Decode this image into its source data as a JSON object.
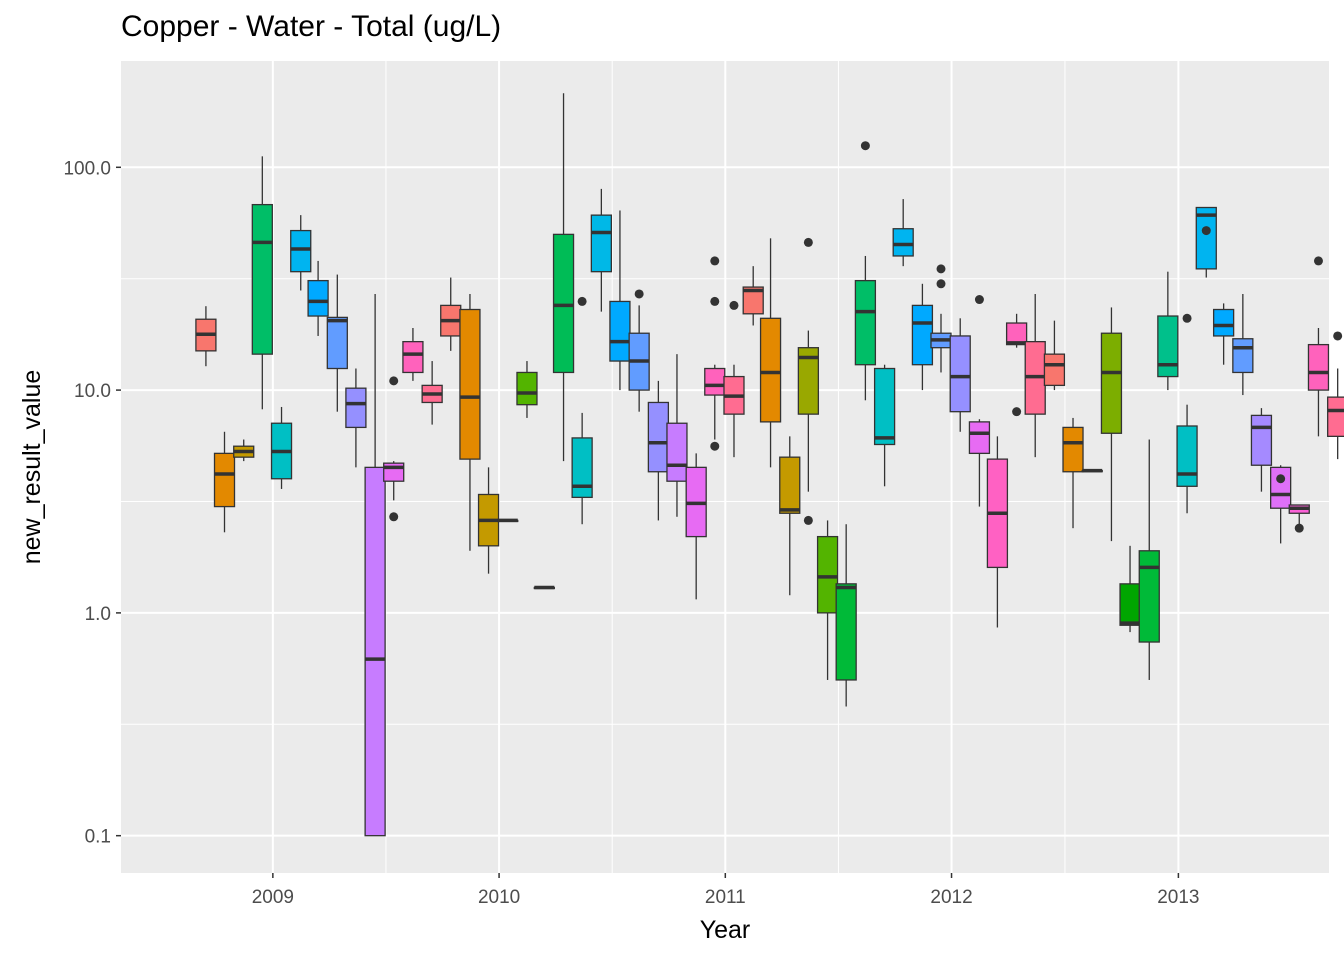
{
  "chart_data": {
    "type": "boxplot",
    "title": "Copper - Water - Total (ug/L)",
    "xlabel": "Year",
    "ylabel": "new_result_value",
    "y_scale": "log10",
    "ylim": [
      0.068,
      300
    ],
    "x_range": [
      "2008-05-01",
      "2013-09-01"
    ],
    "y_ticks": [
      0.1,
      1.0,
      10.0,
      100.0
    ],
    "y_tick_labels": [
      "0.1",
      "1.0",
      "10.0",
      "100.0"
    ],
    "x_ticks": [
      "2009-01-01",
      "2010-01-01",
      "2011-01-01",
      "2012-01-01",
      "2013-01-01"
    ],
    "x_tick_labels": [
      "2009",
      "2010",
      "2011",
      "2012",
      "2013"
    ],
    "grid": true,
    "legend": "none",
    "boxes": [
      {
        "date": "2008-09-15",
        "low": 12.8,
        "q1": 15.0,
        "median": 17.8,
        "q3": 20.8,
        "high": 23.8,
        "outliers": [],
        "color": "#F8766D"
      },
      {
        "date": "2008-10-15",
        "low": 2.3,
        "q1": 3.0,
        "median": 4.2,
        "q3": 5.2,
        "high": 6.5,
        "outliers": [],
        "color": "#E38900"
      },
      {
        "date": "2008-11-15",
        "low": 4.8,
        "q1": 5.0,
        "median": 5.3,
        "q3": 5.6,
        "high": 6.0,
        "outliers": [],
        "color": "#C49A00"
      },
      {
        "date": "2008-12-15",
        "low": 8.2,
        "q1": 14.5,
        "median": 46.0,
        "q3": 68.0,
        "high": 112.0,
        "outliers": [],
        "color": "#00BE67"
      },
      {
        "date": "2009-01-15",
        "low": 3.6,
        "q1": 4.0,
        "median": 5.3,
        "q3": 7.1,
        "high": 8.4,
        "outliers": [],
        "color": "#00BFC4"
      },
      {
        "date": "2009-02-15",
        "low": 28.0,
        "q1": 34.0,
        "median": 43.0,
        "q3": 52.0,
        "high": 61.0,
        "outliers": [],
        "color": "#00B4F0"
      },
      {
        "date": "2009-03-15",
        "low": 17.5,
        "q1": 21.5,
        "median": 25.0,
        "q3": 31.0,
        "high": 38.0,
        "outliers": [],
        "color": "#00A9FF"
      },
      {
        "date": "2009-04-15",
        "low": 8.0,
        "q1": 12.5,
        "median": 20.5,
        "q3": 21.2,
        "high": 33.0,
        "outliers": [],
        "color": "#619CFF"
      },
      {
        "date": "2009-05-15",
        "low": 4.5,
        "q1": 6.8,
        "median": 8.7,
        "q3": 10.2,
        "high": 12.5,
        "outliers": [],
        "color": "#9590FF"
      },
      {
        "date": "2009-06-15",
        "low": 0.1,
        "q1": 0.1,
        "median": 0.62,
        "q3": 4.5,
        "high": 27.0,
        "outliers": [],
        "color": "#C77CFF"
      },
      {
        "date": "2009-07-15",
        "low": 3.2,
        "q1": 3.9,
        "median": 4.5,
        "q3": 4.7,
        "high": 4.8,
        "outliers": [
          11.0,
          2.7
        ],
        "color": "#E76BF3"
      },
      {
        "date": "2009-08-15",
        "low": 11.0,
        "q1": 12.0,
        "median": 14.5,
        "q3": 16.5,
        "high": 19.0,
        "outliers": [],
        "color": "#FF62BC"
      },
      {
        "date": "2009-09-15",
        "low": 7.0,
        "q1": 8.8,
        "median": 9.6,
        "q3": 10.5,
        "high": 13.5,
        "outliers": [],
        "color": "#FF6C91"
      },
      {
        "date": "2009-10-15",
        "low": 15.0,
        "q1": 17.5,
        "median": 20.5,
        "q3": 24.0,
        "high": 32.0,
        "outliers": [],
        "color": "#F8766D"
      },
      {
        "date": "2009-11-15",
        "low": 1.9,
        "q1": 4.9,
        "median": 9.3,
        "q3": 23.0,
        "high": 27.0,
        "outliers": [],
        "color": "#E38900"
      },
      {
        "date": "2009-12-15",
        "low": 1.5,
        "q1": 2.0,
        "median": 2.6,
        "q3": 3.4,
        "high": 4.5,
        "outliers": [],
        "color": "#C49A00"
      },
      {
        "date": "2010-01-15",
        "low": 2.6,
        "q1": 2.6,
        "median": 2.6,
        "q3": 2.6,
        "high": 2.6,
        "outliers": [],
        "color": "#99A800"
      },
      {
        "date": "2010-02-15",
        "low": 7.5,
        "q1": 8.6,
        "median": 9.7,
        "q3": 12.0,
        "high": 13.5,
        "outliers": [],
        "color": "#53B400"
      },
      {
        "date": "2010-03-15",
        "low": 1.3,
        "q1": 1.3,
        "median": 1.3,
        "q3": 1.3,
        "high": 1.3,
        "outliers": [],
        "color": "#00B8E7"
      },
      {
        "date": "2010-04-15",
        "low": 4.8,
        "q1": 12.0,
        "median": 24.0,
        "q3": 50.0,
        "high": 215.0,
        "outliers": [],
        "color": "#00BC56"
      },
      {
        "date": "2010-05-15",
        "low": 2.5,
        "q1": 3.3,
        "median": 3.7,
        "q3": 6.1,
        "high": 7.9,
        "outliers": [
          25.0
        ],
        "color": "#00BFC4"
      },
      {
        "date": "2010-06-15",
        "low": 22.5,
        "q1": 34.0,
        "median": 51.0,
        "q3": 61.0,
        "high": 80.0,
        "outliers": [],
        "color": "#00B8E7"
      },
      {
        "date": "2010-07-15",
        "low": 10.0,
        "q1": 13.5,
        "median": 16.5,
        "q3": 25.0,
        "high": 64.0,
        "outliers": [],
        "color": "#00A9FF"
      },
      {
        "date": "2010-08-15",
        "low": 8.0,
        "q1": 10.0,
        "median": 13.5,
        "q3": 18.0,
        "high": 24.0,
        "outliers": [
          27.0
        ],
        "color": "#619CFF"
      },
      {
        "date": "2010-09-15",
        "low": 2.6,
        "q1": 4.3,
        "median": 5.8,
        "q3": 8.8,
        "high": 11.0,
        "outliers": [],
        "color": "#9590FF"
      },
      {
        "date": "2010-10-15",
        "low": 2.7,
        "q1": 3.9,
        "median": 4.6,
        "q3": 7.1,
        "high": 14.5,
        "outliers": [],
        "color": "#C77CFF"
      },
      {
        "date": "2010-11-15",
        "low": 1.15,
        "q1": 2.2,
        "median": 3.1,
        "q3": 4.5,
        "high": 5.2,
        "outliers": [],
        "color": "#E76BF3"
      },
      {
        "date": "2010-12-15",
        "low": 6.0,
        "q1": 9.5,
        "median": 10.5,
        "q3": 12.5,
        "high": 13.0,
        "outliers": [
          38.0,
          25.0,
          5.6
        ],
        "color": "#FF62BC"
      },
      {
        "date": "2011-01-15",
        "low": 5.0,
        "q1": 7.8,
        "median": 9.4,
        "q3": 11.5,
        "high": 13.0,
        "outliers": [
          24.0
        ],
        "color": "#FF6C91"
      },
      {
        "date": "2011-02-15",
        "low": 19.5,
        "q1": 22.0,
        "median": 28.0,
        "q3": 29.0,
        "high": 36.0,
        "outliers": [],
        "color": "#F8766D"
      },
      {
        "date": "2011-03-15",
        "low": 4.5,
        "q1": 7.2,
        "median": 12.0,
        "q3": 21.0,
        "high": 48.0,
        "outliers": [],
        "color": "#E38900"
      },
      {
        "date": "2011-04-15",
        "low": 1.2,
        "q1": 2.8,
        "median": 2.9,
        "q3": 5.0,
        "high": 6.2,
        "outliers": [],
        "color": "#C49A00"
      },
      {
        "date": "2011-05-15",
        "low": 3.5,
        "q1": 7.8,
        "median": 14.0,
        "q3": 15.5,
        "high": 18.5,
        "outliers": [
          2.6,
          46.0
        ],
        "color": "#99A800"
      },
      {
        "date": "2011-06-15",
        "low": 0.5,
        "q1": 1.0,
        "median": 1.45,
        "q3": 2.2,
        "high": 2.6,
        "outliers": [],
        "color": "#53B400"
      },
      {
        "date": "2011-07-15",
        "low": 0.38,
        "q1": 0.5,
        "median": 1.3,
        "q3": 1.35,
        "high": 2.5,
        "outliers": [],
        "color": "#00BA38"
      },
      {
        "date": "2011-08-15",
        "low": 9.0,
        "q1": 13.0,
        "median": 22.5,
        "q3": 31.0,
        "high": 40.0,
        "outliers": [
          125.0
        ],
        "color": "#00BE67"
      },
      {
        "date": "2011-09-15",
        "low": 3.7,
        "q1": 5.7,
        "median": 6.1,
        "q3": 12.5,
        "high": 13.0,
        "outliers": [],
        "color": "#00BFC4"
      },
      {
        "date": "2011-10-15",
        "low": 36.0,
        "q1": 40.0,
        "median": 45.0,
        "q3": 53.0,
        "high": 72.0,
        "outliers": [],
        "color": "#00B4F0"
      },
      {
        "date": "2011-11-15",
        "low": 10.0,
        "q1": 13.0,
        "median": 20.0,
        "q3": 24.0,
        "high": 30.0,
        "outliers": [],
        "color": "#00A9FF"
      },
      {
        "date": "2011-12-15",
        "low": 12.0,
        "q1": 15.5,
        "median": 16.8,
        "q3": 18.0,
        "high": 22.0,
        "outliers": [
          35.0,
          30.0
        ],
        "color": "#619CFF"
      },
      {
        "date": "2012-01-15",
        "low": 6.5,
        "q1": 8.0,
        "median": 11.5,
        "q3": 17.5,
        "high": 21.0,
        "outliers": [],
        "color": "#9590FF"
      },
      {
        "date": "2012-02-15",
        "low": 3.0,
        "q1": 5.2,
        "median": 6.4,
        "q3": 7.2,
        "high": 7.4,
        "outliers": [
          25.5
        ],
        "color": "#E76BF3"
      },
      {
        "date": "2012-03-15",
        "low": 0.86,
        "q1": 1.6,
        "median": 2.8,
        "q3": 4.9,
        "high": 6.2,
        "outliers": [],
        "color": "#FF61C3"
      },
      {
        "date": "2012-04-15",
        "low": 15.5,
        "q1": 16.0,
        "median": 16.3,
        "q3": 20.0,
        "high": 22.0,
        "outliers": [
          8.0
        ],
        "color": "#FF62BC"
      },
      {
        "date": "2012-05-15",
        "low": 5.0,
        "q1": 7.8,
        "median": 11.5,
        "q3": 16.5,
        "high": 27.0,
        "outliers": [],
        "color": "#FF6C91"
      },
      {
        "date": "2012-06-15",
        "low": 10.0,
        "q1": 10.5,
        "median": 13.0,
        "q3": 14.5,
        "high": 20.5,
        "outliers": [],
        "color": "#F8766D"
      },
      {
        "date": "2012-07-15",
        "low": 2.4,
        "q1": 4.3,
        "median": 5.8,
        "q3": 6.8,
        "high": 7.5,
        "outliers": [],
        "color": "#E38900"
      },
      {
        "date": "2012-08-15",
        "low": 4.35,
        "q1": 4.35,
        "median": 4.35,
        "q3": 4.35,
        "high": 4.35,
        "outliers": [],
        "color": "#C49A00"
      },
      {
        "date": "2012-09-15",
        "low": 2.1,
        "q1": 6.4,
        "median": 12.0,
        "q3": 18.0,
        "high": 23.5,
        "outliers": [],
        "color": "#7CAE00"
      },
      {
        "date": "2012-10-15",
        "low": 0.82,
        "q1": 0.88,
        "median": 0.9,
        "q3": 1.35,
        "high": 2.0,
        "outliers": [],
        "color": "#00A600"
      },
      {
        "date": "2012-11-15",
        "low": 0.5,
        "q1": 0.74,
        "median": 1.6,
        "q3": 1.9,
        "high": 6.0,
        "outliers": [],
        "color": "#00BA38"
      },
      {
        "date": "2012-12-15",
        "low": 10.0,
        "q1": 11.5,
        "median": 13.0,
        "q3": 21.5,
        "high": 34.0,
        "outliers": [],
        "color": "#00C08B"
      },
      {
        "date": "2013-01-15",
        "low": 2.8,
        "q1": 3.7,
        "median": 4.2,
        "q3": 6.9,
        "high": 8.6,
        "outliers": [
          21.0
        ],
        "color": "#00BFC4"
      },
      {
        "date": "2013-02-15",
        "low": 32.0,
        "q1": 35.0,
        "median": 61.0,
        "q3": 66.0,
        "high": 66.0,
        "outliers": [
          52.0
        ],
        "color": "#00B4F0"
      },
      {
        "date": "2013-03-15",
        "low": 13.0,
        "q1": 17.5,
        "median": 19.5,
        "q3": 23.0,
        "high": 24.5,
        "outliers": [],
        "color": "#00A9FF"
      },
      {
        "date": "2013-04-15",
        "low": 9.5,
        "q1": 12.0,
        "median": 15.5,
        "q3": 17.0,
        "high": 27.0,
        "outliers": [],
        "color": "#619CFF"
      },
      {
        "date": "2013-05-15",
        "low": 3.5,
        "q1": 4.6,
        "median": 6.8,
        "q3": 7.7,
        "high": 8.3,
        "outliers": [],
        "color": "#A58AFF"
      },
      {
        "date": "2013-06-15",
        "low": 2.05,
        "q1": 2.95,
        "median": 3.4,
        "q3": 4.5,
        "high": 4.6,
        "outliers": [
          4.0
        ],
        "color": "#DF70F8"
      },
      {
        "date": "2013-07-15",
        "low": 2.5,
        "q1": 2.8,
        "median": 2.95,
        "q3": 3.05,
        "high": 3.05,
        "outliers": [
          2.4
        ],
        "color": "#FB61D7"
      },
      {
        "date": "2013-08-15",
        "low": 6.2,
        "q1": 10.0,
        "median": 12.0,
        "q3": 16.0,
        "high": 19.0,
        "outliers": [
          38.0
        ],
        "color": "#FF62BC"
      },
      {
        "date": "2013-09-15",
        "low": 4.9,
        "q1": 6.2,
        "median": 8.1,
        "q3": 9.3,
        "high": 12.5,
        "outliers": [
          17.5
        ],
        "color": "#FF6C91"
      }
    ]
  }
}
